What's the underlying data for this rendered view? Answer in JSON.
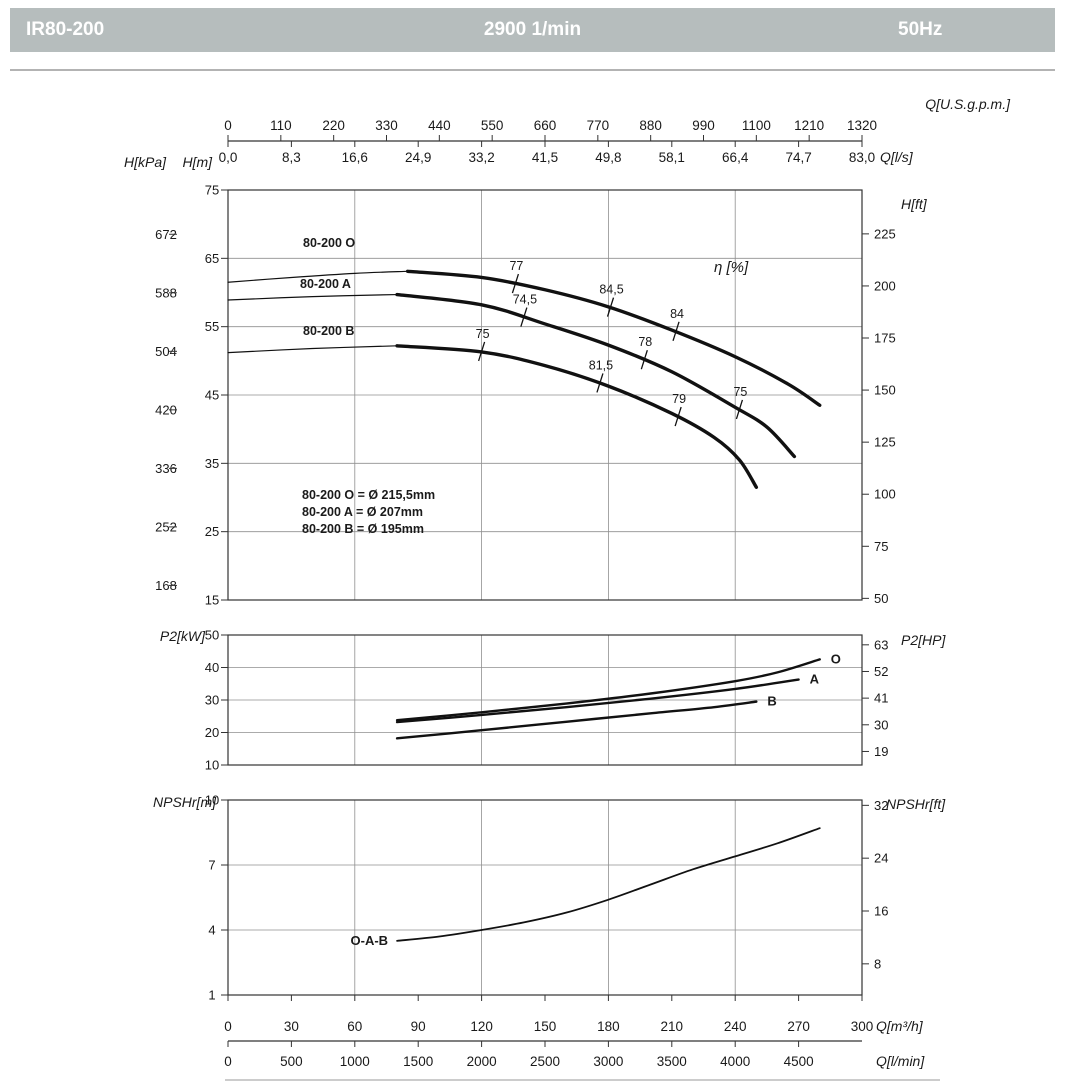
{
  "header": {
    "model": "IR80-200",
    "speed": "2900 1/min",
    "frequency": "50Hz"
  },
  "chart_data": [
    {
      "id": "head",
      "type": "line",
      "axes": {
        "top_gpm": {
          "label": "Q[U.S.g.p.m.]",
          "ticks": [
            "0",
            "110",
            "220",
            "330",
            "440",
            "550",
            "660",
            "770",
            "880",
            "990",
            "1100",
            "1210",
            "1320"
          ],
          "range": [
            0,
            1320
          ]
        },
        "top_ls": {
          "label": "Q[l/s]",
          "ticks": [
            "0,0",
            "8,3",
            "16,6",
            "24,9",
            "33,2",
            "41,5",
            "49,8",
            "58,1",
            "66,4",
            "74,7",
            "83,0"
          ],
          "range": [
            0,
            83
          ]
        },
        "left_kpa": {
          "label": "H[kPa]",
          "ticks": [
            672,
            588,
            504,
            420,
            336,
            252,
            168
          ]
        },
        "left_m": {
          "label": "H[m]",
          "ticks": [
            75,
            65,
            55,
            45,
            35,
            25,
            15
          ],
          "range": [
            15,
            75
          ]
        },
        "right_ft": {
          "label": "H[ft]",
          "ticks": [
            225,
            200,
            175,
            150,
            125,
            100,
            75,
            50
          ]
        }
      },
      "efficiency_label": "η [%]",
      "xlim": [
        0,
        300
      ],
      "ylim": [
        15,
        75
      ],
      "grid": true,
      "series": [
        {
          "name": "80-200 O",
          "note": "80-200 O = Ø 215,5mm",
          "thick_from": 80,
          "points": [
            [
              0,
              61.5
            ],
            [
              30,
              62.2
            ],
            [
              60,
              62.8
            ],
            [
              85,
              63.1
            ],
            [
              120,
              62.2
            ],
            [
              150,
              60.4
            ],
            [
              180,
              57.9
            ],
            [
              210,
              54.5
            ],
            [
              240,
              50.6
            ],
            [
              265,
              46.6
            ],
            [
              280,
              43.5
            ]
          ],
          "eta_markers": [
            {
              "q": 136,
              "label": "77"
            },
            {
              "q": 181,
              "label": "84,5"
            },
            {
              "q": 212,
              "label": "84"
            }
          ]
        },
        {
          "name": "80-200 A",
          "note": "80-200 A = Ø 207mm",
          "thick_from": 80,
          "points": [
            [
              0,
              58.9
            ],
            [
              40,
              59.4
            ],
            [
              80,
              59.7
            ],
            [
              120,
              58.2
            ],
            [
              150,
              55.4
            ],
            [
              180,
              52.3
            ],
            [
              210,
              48.4
            ],
            [
              240,
              43.2
            ],
            [
              255,
              40.3
            ],
            [
              268,
              36.0
            ]
          ],
          "eta_markers": [
            {
              "q": 140,
              "label": "74,5"
            },
            {
              "q": 197,
              "label": "78"
            },
            {
              "q": 242,
              "label": "75"
            }
          ]
        },
        {
          "name": "80-200 B",
          "note": "80-200 B = Ø 195mm",
          "thick_from": 80,
          "points": [
            [
              0,
              51.2
            ],
            [
              40,
              51.8
            ],
            [
              80,
              52.2
            ],
            [
              120,
              51.3
            ],
            [
              150,
              49.3
            ],
            [
              180,
              46.3
            ],
            [
              210,
              42.3
            ],
            [
              230,
              38.8
            ],
            [
              242,
              35.5
            ],
            [
              250,
              31.5
            ]
          ],
          "eta_markers": [
            {
              "q": 120,
              "label": "75"
            },
            {
              "q": 176,
              "label": "81,5"
            },
            {
              "q": 213,
              "label": "79"
            }
          ]
        }
      ]
    },
    {
      "id": "power",
      "type": "line",
      "axes": {
        "left_kw": {
          "label": "P2[kW]",
          "ticks": [
            50,
            40,
            30,
            20,
            10
          ],
          "range": [
            10,
            50
          ]
        },
        "right_hp": {
          "label": "P2[HP]",
          "ticks": [
            63,
            52,
            41,
            30,
            19
          ]
        }
      },
      "xlim": [
        0,
        300
      ],
      "ylim": [
        10,
        50
      ],
      "grid": true,
      "series": [
        {
          "name": "O",
          "points": [
            [
              80,
              23.8
            ],
            [
              120,
              26.2
            ],
            [
              160,
              28.9
            ],
            [
              200,
              32.0
            ],
            [
              240,
              35.8
            ],
            [
              260,
              38.5
            ],
            [
              280,
              42.5
            ]
          ]
        },
        {
          "name": "A",
          "points": [
            [
              80,
              23.2
            ],
            [
              120,
              25.4
            ],
            [
              160,
              27.8
            ],
            [
              200,
              30.4
            ],
            [
              240,
              33.4
            ],
            [
              270,
              36.3
            ]
          ]
        },
        {
          "name": "B",
          "points": [
            [
              80,
              18.2
            ],
            [
              120,
              20.7
            ],
            [
              160,
              23.3
            ],
            [
              200,
              25.9
            ],
            [
              230,
              27.8
            ],
            [
              250,
              29.5
            ]
          ]
        }
      ]
    },
    {
      "id": "npshr",
      "type": "line",
      "axes": {
        "left_m": {
          "label": "NPSHr[m]",
          "ticks": [
            10,
            7,
            4,
            1
          ],
          "range": [
            1,
            10
          ]
        },
        "right_ft": {
          "label": "NPSHr[ft]",
          "ticks": [
            32,
            24,
            16,
            8
          ]
        }
      },
      "xlim": [
        0,
        300
      ],
      "ylim": [
        1,
        10
      ],
      "grid": true,
      "series": [
        {
          "name": "O-A-B",
          "points": [
            [
              80,
              3.5
            ],
            [
              100,
              3.7
            ],
            [
              120,
              4.0
            ],
            [
              140,
              4.35
            ],
            [
              160,
              4.8
            ],
            [
              180,
              5.4
            ],
            [
              200,
              6.1
            ],
            [
              220,
              6.8
            ],
            [
              240,
              7.4
            ],
            [
              260,
              8.0
            ],
            [
              280,
              8.7
            ]
          ]
        }
      ]
    }
  ],
  "bottom_axes": {
    "m3h": {
      "label": "Q[m³/h]",
      "ticks": [
        "0",
        "30",
        "60",
        "90",
        "120",
        "150",
        "180",
        "210",
        "240",
        "270",
        "300"
      ],
      "range": [
        0,
        300
      ]
    },
    "lmin": {
      "label": "Q[l/min]",
      "ticks": [
        "0",
        "500",
        "1000",
        "1500",
        "2000",
        "2500",
        "3000",
        "3500",
        "4000",
        "4500"
      ]
    }
  }
}
